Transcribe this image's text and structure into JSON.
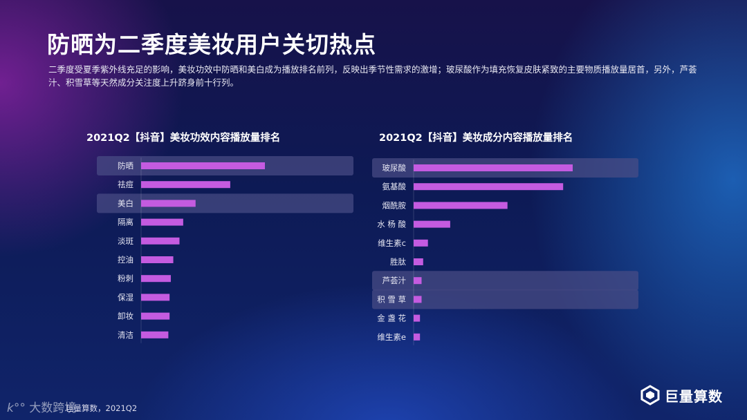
{
  "page": {
    "title": "防晒为二季度美妆用户关切热点",
    "subtitle": "二季度受夏季紫外线充足的影响，美妆功效中防晒和美白成为播放排名前列，反映出季节性需求的激增；玻尿酸作为填充恢复皮肤紧致的主要物质播放量居首，另外，芦荟汁、积雪草等天然成分关注度上升跻身前十行列。",
    "source": "巨量算数，2021Q2",
    "watermark": "大数跨境",
    "brand": "巨量算数"
  },
  "chart_data": [
    {
      "type": "bar",
      "orientation": "horizontal",
      "title": "2021Q2【抖音】美妆功效内容播放量排名",
      "categories": [
        "防晒",
        "祛痘",
        "美白",
        "隔离",
        "淡斑",
        "控油",
        "粉刺",
        "保湿",
        "卸妆",
        "清洁"
      ],
      "values": [
        100,
        72,
        44,
        34,
        31,
        26,
        24,
        23,
        23,
        22
      ],
      "highlighted": [
        "防晒",
        "美白"
      ],
      "bar_color": "#c45be0",
      "highlight_color": "#4a4d86"
    },
    {
      "type": "bar",
      "orientation": "horizontal",
      "title": "2021Q2【抖音】美妆成分内容播放量排名",
      "categories": [
        "玻尿酸",
        "氨基酸",
        "烟酰胺",
        "水 杨 酸",
        "维生素c",
        "胜肽",
        "芦荟汁",
        "积 雪 草",
        "金 盏 花",
        "维生素e"
      ],
      "values": [
        100,
        94,
        59,
        23,
        9,
        6,
        5,
        5,
        4,
        4
      ],
      "highlighted": [
        "玻尿酸",
        "芦荟汁",
        "积 雪 草"
      ],
      "bar_color": "#c45be0",
      "highlight_color": "#4a4d86"
    }
  ]
}
